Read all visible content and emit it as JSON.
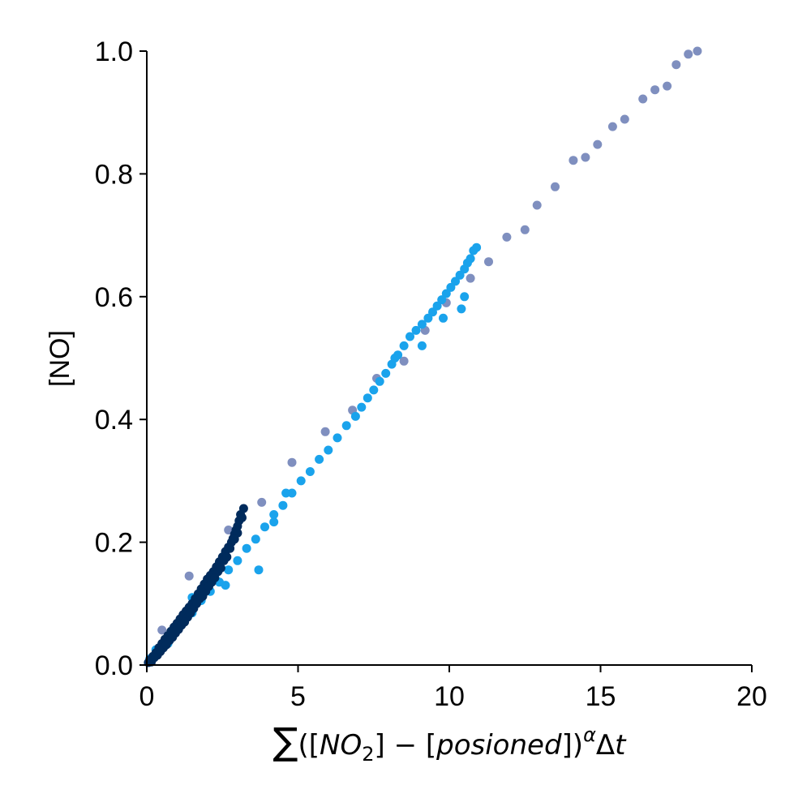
{
  "chart_data": {
    "type": "scatter",
    "title": "",
    "xlabel": {
      "sum": "∑",
      "open": "([",
      "no2": "NO",
      "sub2": "2",
      "mid": "] − [",
      "pois": "posioned",
      "close": "])",
      "sup": "α",
      "delta": "Δ",
      "t": "t"
    },
    "ylabel": "[NO]",
    "xlim": [
      0,
      20
    ],
    "ylim": [
      0,
      1.0
    ],
    "xticks": [
      "0",
      "5",
      "10",
      "15",
      "20"
    ],
    "yticks": [
      "0.0",
      "0.2",
      "0.4",
      "0.6",
      "0.8",
      "1.0"
    ],
    "xtick_values": [
      0,
      5,
      10,
      15,
      20
    ],
    "ytick_values": [
      0,
      0.2,
      0.4,
      0.6,
      0.8,
      1.0
    ],
    "grid": false,
    "series": [
      {
        "color": "#7f8fbf",
        "points": [
          [
            18.2,
            1.0
          ],
          [
            17.9,
            0.995
          ],
          [
            17.5,
            0.978
          ],
          [
            17.2,
            0.943
          ],
          [
            16.8,
            0.937
          ],
          [
            16.4,
            0.922
          ],
          [
            15.8,
            0.889
          ],
          [
            15.4,
            0.877
          ],
          [
            14.9,
            0.848
          ],
          [
            14.5,
            0.827
          ],
          [
            14.1,
            0.822
          ],
          [
            13.5,
            0.779
          ],
          [
            12.9,
            0.749
          ],
          [
            12.5,
            0.709
          ],
          [
            11.9,
            0.697
          ],
          [
            11.3,
            0.657
          ],
          [
            10.7,
            0.63
          ],
          [
            9.9,
            0.59
          ],
          [
            9.2,
            0.545
          ],
          [
            8.5,
            0.495
          ],
          [
            7.6,
            0.467
          ],
          [
            6.8,
            0.415
          ],
          [
            5.9,
            0.38
          ],
          [
            4.8,
            0.33
          ],
          [
            3.8,
            0.265
          ],
          [
            2.7,
            0.22
          ],
          [
            1.4,
            0.145
          ],
          [
            0.5,
            0.057
          ]
        ]
      },
      {
        "color": "#1aa3ec",
        "points": [
          [
            10.9,
            0.68
          ],
          [
            10.8,
            0.675
          ],
          [
            10.7,
            0.662
          ],
          [
            10.6,
            0.655
          ],
          [
            10.5,
            0.645
          ],
          [
            10.35,
            0.635
          ],
          [
            10.2,
            0.625
          ],
          [
            10.05,
            0.615
          ],
          [
            9.9,
            0.605
          ],
          [
            9.75,
            0.595
          ],
          [
            9.6,
            0.585
          ],
          [
            9.45,
            0.575
          ],
          [
            9.3,
            0.565
          ],
          [
            9.1,
            0.555
          ],
          [
            8.9,
            0.545
          ],
          [
            8.7,
            0.535
          ],
          [
            8.5,
            0.52
          ],
          [
            8.3,
            0.505
          ],
          [
            8.1,
            0.49
          ],
          [
            7.9,
            0.475
          ],
          [
            7.7,
            0.462
          ],
          [
            7.5,
            0.448
          ],
          [
            7.3,
            0.435
          ],
          [
            7.1,
            0.42
          ],
          [
            6.9,
            0.405
          ],
          [
            6.6,
            0.39
          ],
          [
            6.3,
            0.37
          ],
          [
            6.0,
            0.35
          ],
          [
            5.7,
            0.335
          ],
          [
            5.4,
            0.315
          ],
          [
            5.1,
            0.3
          ],
          [
            4.8,
            0.28
          ],
          [
            4.5,
            0.26
          ],
          [
            4.2,
            0.245
          ],
          [
            3.9,
            0.225
          ],
          [
            3.6,
            0.205
          ],
          [
            3.3,
            0.19
          ],
          [
            3.0,
            0.17
          ],
          [
            2.7,
            0.155
          ],
          [
            2.4,
            0.135
          ],
          [
            2.1,
            0.12
          ],
          [
            1.8,
            0.105
          ],
          [
            1.5,
            0.085
          ],
          [
            1.2,
            0.072
          ],
          [
            0.9,
            0.055
          ],
          [
            0.6,
            0.04
          ],
          [
            0.3,
            0.025
          ],
          [
            0.1,
            0.01
          ],
          [
            3.7,
            0.155
          ],
          [
            2.6,
            0.13
          ],
          [
            1.5,
            0.11
          ],
          [
            1.0,
            0.06
          ],
          [
            0.7,
            0.035
          ],
          [
            4.6,
            0.28
          ],
          [
            4.2,
            0.233
          ],
          [
            8.2,
            0.5
          ],
          [
            9.1,
            0.52
          ],
          [
            9.8,
            0.565
          ],
          [
            10.4,
            0.58
          ],
          [
            10.5,
            0.6
          ]
        ]
      },
      {
        "color": "#002b5c",
        "points": [
          [
            3.2,
            0.255
          ],
          [
            3.1,
            0.245
          ],
          [
            3.05,
            0.235
          ],
          [
            3.0,
            0.226
          ],
          [
            2.95,
            0.22
          ],
          [
            2.9,
            0.213
          ],
          [
            2.85,
            0.206
          ],
          [
            2.8,
            0.2
          ],
          [
            2.7,
            0.192
          ],
          [
            2.6,
            0.185
          ],
          [
            2.5,
            0.176
          ],
          [
            2.4,
            0.168
          ],
          [
            2.3,
            0.16
          ],
          [
            2.2,
            0.152
          ],
          [
            2.1,
            0.146
          ],
          [
            2.0,
            0.14
          ],
          [
            1.9,
            0.132
          ],
          [
            1.8,
            0.124
          ],
          [
            1.7,
            0.116
          ],
          [
            1.6,
            0.108
          ],
          [
            1.5,
            0.1
          ],
          [
            1.4,
            0.094
          ],
          [
            1.3,
            0.088
          ],
          [
            1.2,
            0.082
          ],
          [
            1.1,
            0.075
          ],
          [
            1.0,
            0.068
          ],
          [
            0.9,
            0.062
          ],
          [
            0.8,
            0.055
          ],
          [
            0.7,
            0.048
          ],
          [
            0.6,
            0.042
          ],
          [
            0.5,
            0.035
          ],
          [
            0.4,
            0.028
          ],
          [
            0.3,
            0.02
          ],
          [
            0.2,
            0.014
          ],
          [
            0.1,
            0.008
          ],
          [
            0.05,
            0.004
          ],
          [
            3.15,
            0.24
          ],
          [
            3.0,
            0.215
          ],
          [
            2.75,
            0.19
          ],
          [
            2.55,
            0.17
          ],
          [
            2.35,
            0.152
          ],
          [
            2.15,
            0.135
          ],
          [
            1.95,
            0.12
          ],
          [
            1.75,
            0.108
          ],
          [
            1.55,
            0.092
          ],
          [
            1.35,
            0.078
          ],
          [
            1.15,
            0.065
          ],
          [
            0.95,
            0.052
          ],
          [
            0.75,
            0.04
          ],
          [
            0.55,
            0.028
          ],
          [
            0.35,
            0.016
          ],
          [
            0.15,
            0.005
          ],
          [
            2.9,
            0.205
          ],
          [
            2.65,
            0.176
          ],
          [
            2.45,
            0.158
          ],
          [
            2.25,
            0.142
          ],
          [
            2.05,
            0.128
          ],
          [
            1.85,
            0.112
          ],
          [
            1.65,
            0.1
          ],
          [
            1.45,
            0.085
          ],
          [
            1.25,
            0.07
          ],
          [
            1.05,
            0.058
          ],
          [
            0.85,
            0.045
          ],
          [
            0.65,
            0.033
          ],
          [
            0.45,
            0.022
          ],
          [
            0.25,
            0.012
          ]
        ]
      }
    ]
  }
}
